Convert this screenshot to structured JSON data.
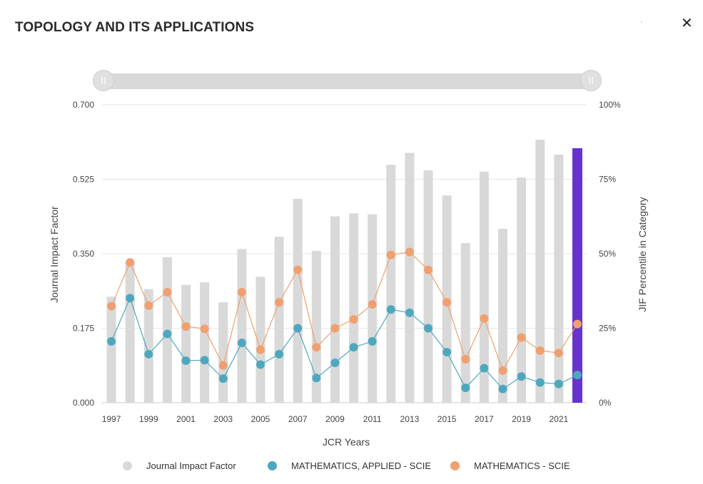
{
  "title": "TOPOLOGY AND ITS APPLICATIONS",
  "close_symbol": "✕",
  "chart_data": {
    "type": "bar",
    "xlabel": "JCR Years",
    "ylabel": "Journal Impact Factor",
    "y2label": "JIF Percentile in Category",
    "ylim": [
      0,
      0.7
    ],
    "y2lim": [
      0,
      100
    ],
    "yticks": [
      "0.000",
      "0.175",
      "0.350",
      "0.525",
      "0.700"
    ],
    "y2ticks": [
      "0%",
      "25%",
      "50%",
      "75%",
      "100%"
    ],
    "x": [
      1997,
      1998,
      1999,
      2000,
      2001,
      2002,
      2003,
      2004,
      2005,
      2006,
      2007,
      2008,
      2009,
      2010,
      2011,
      2012,
      2013,
      2014,
      2015,
      2016,
      2017,
      2018,
      2019,
      2020,
      2021,
      2022
    ],
    "xtick_labels": [
      "1997",
      "1999",
      "2001",
      "2003",
      "2005",
      "2007",
      "2009",
      "2011",
      "2013",
      "2015",
      "2017",
      "2019",
      "2021"
    ],
    "highlight_year": 2022,
    "highlight_color": "#6633cc",
    "legend_position": "bottom",
    "grid": true,
    "series": [
      {
        "name": "Journal Impact Factor",
        "kind": "bar",
        "axis": "left",
        "color": "#d9d9d9",
        "values": [
          0.249,
          0.331,
          0.267,
          0.342,
          0.277,
          0.283,
          0.236,
          0.361,
          0.296,
          0.39,
          0.479,
          0.357,
          0.438,
          0.445,
          0.443,
          0.559,
          0.587,
          0.546,
          0.487,
          0.375,
          0.543,
          0.409,
          0.529,
          0.618,
          0.583,
          0.598
        ]
      },
      {
        "name": "MATHEMATICS, APPLIED - SCIE",
        "kind": "line",
        "axis": "right",
        "color": "#4ea8bd",
        "values": [
          20.6,
          35.1,
          16.3,
          23.1,
          14.1,
          14.3,
          8.1,
          20.1,
          12.8,
          16.3,
          25.0,
          8.3,
          13.4,
          18.6,
          20.6,
          31.3,
          30.2,
          25.0,
          17.0,
          5.0,
          11.6,
          4.6,
          8.8,
          6.8,
          6.3,
          9.3
        ]
      },
      {
        "name": "MATHEMATICS - SCIE",
        "kind": "line",
        "axis": "right",
        "color": "#f0a070",
        "values": [
          32.4,
          47.1,
          32.6,
          37.1,
          25.6,
          24.8,
          12.5,
          37.1,
          17.8,
          33.7,
          44.6,
          18.6,
          25.0,
          28.0,
          33.0,
          49.6,
          50.6,
          44.6,
          33.7,
          14.6,
          28.3,
          10.8,
          21.9,
          17.5,
          16.7,
          26.4
        ]
      }
    ]
  }
}
